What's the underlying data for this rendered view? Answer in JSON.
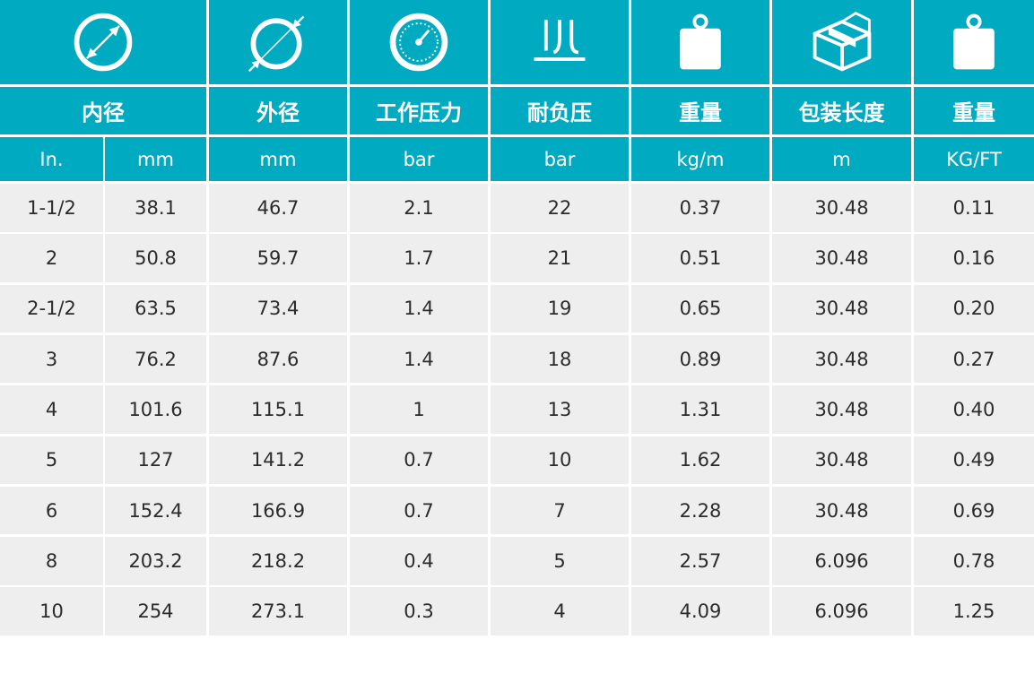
{
  "headers": [
    {
      "icon": "diameter-inner-icon",
      "label": "内径",
      "units": [
        "In.",
        "mm"
      ]
    },
    {
      "icon": "diameter-outer-icon",
      "label": "外径",
      "units": [
        "mm"
      ]
    },
    {
      "icon": "pressure-gauge-icon",
      "label": "工作压力",
      "units": [
        "bar"
      ]
    },
    {
      "icon": "vacuum-icon",
      "label": "耐负压",
      "units": [
        "bar"
      ]
    },
    {
      "icon": "weight-icon",
      "label": "重量",
      "units": [
        "kg/m"
      ]
    },
    {
      "icon": "package-box-icon",
      "label": "包装长度",
      "units": [
        "m"
      ]
    },
    {
      "icon": "weight-icon",
      "label": "重量",
      "units": [
        "KG/FT"
      ]
    }
  ],
  "rows": [
    [
      "1-1/2",
      "38.1",
      "46.7",
      "2.1",
      "22",
      "0.37",
      "30.48",
      "0.11"
    ],
    [
      "2",
      "50.8",
      "59.7",
      "1.7",
      "21",
      "0.51",
      "30.48",
      "0.16"
    ],
    [
      "2-1/2",
      "63.5",
      "73.4",
      "1.4",
      "19",
      "0.65",
      "30.48",
      "0.20"
    ],
    [
      "3",
      "76.2",
      "87.6",
      "1.4",
      "18",
      "0.89",
      "30.48",
      "0.27"
    ],
    [
      "4",
      "101.6",
      "115.1",
      "1",
      "13",
      "1.31",
      "30.48",
      "0.40"
    ],
    [
      "5",
      "127",
      "141.2",
      "0.7",
      "10",
      "1.62",
      "30.48",
      "0.49"
    ],
    [
      "6",
      "152.4",
      "166.9",
      "0.7",
      "7",
      "2.28",
      "30.48",
      "0.69"
    ],
    [
      "8",
      "203.2",
      "218.2",
      "0.4",
      "5",
      "2.57",
      "6.096",
      "0.78"
    ],
    [
      "10",
      "254",
      "273.1",
      "0.3",
      "4",
      "4.09",
      "6.096",
      "1.25"
    ]
  ],
  "colors": {
    "header": "#00abc1",
    "body": "#eeeeee",
    "text": "#2b2b2b"
  }
}
